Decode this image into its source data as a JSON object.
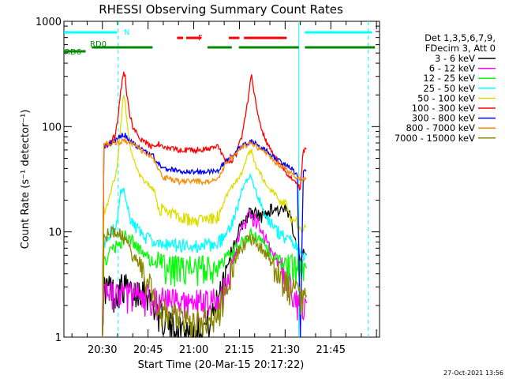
{
  "chart_data": {
    "type": "line",
    "title": "RHESSI Observing Summary Count Rates",
    "xlabel": "Start Time (20-Mar-15 20:17:22)",
    "ylabel": "Count Rate (s⁻¹ detector⁻¹)",
    "y_scale": "log",
    "ylim": [
      1,
      1000
    ],
    "xlim_minutes": [
      17.37,
      121.0
    ],
    "x_ticks": [
      {
        "label": "20:30",
        "minute": 30
      },
      {
        "label": "20:45",
        "minute": 45
      },
      {
        "label": "21:00",
        "minute": 60
      },
      {
        "label": "21:15",
        "minute": 75
      },
      {
        "label": "21:30",
        "minute": 90
      },
      {
        "label": "21:45",
        "minute": 105
      }
    ],
    "y_ticks": [
      {
        "label": "1",
        "value": 1
      },
      {
        "label": "10",
        "value": 10
      },
      {
        "label": "100",
        "value": 100
      },
      {
        "label": "1000",
        "value": 1000
      }
    ],
    "legend": {
      "placement": "right",
      "header": [
        "Det 1,3,5,6,7,9,",
        "FDecim 3, Att 0"
      ]
    },
    "series": [
      {
        "name": "3 - 6 keV",
        "color": "#000000",
        "x": [
          30,
          30.5,
          31,
          32,
          33,
          34,
          36,
          38,
          40,
          42,
          44,
          46,
          47,
          48,
          50,
          52,
          55,
          58,
          60,
          62,
          64,
          66,
          68,
          70,
          72,
          74,
          76,
          78,
          80,
          82,
          84,
          86,
          88,
          90,
          91,
          92,
          93,
          94,
          95,
          96,
          97
        ],
        "y": [
          1,
          3,
          3,
          3,
          3,
          2.5,
          3,
          3,
          2.5,
          3,
          3,
          2.2,
          2,
          1.8,
          1.5,
          1.3,
          1.2,
          1.2,
          1.2,
          1.2,
          1.3,
          1.5,
          2.5,
          4,
          6,
          9,
          12,
          15,
          15,
          14,
          15,
          17,
          16,
          16,
          15,
          13,
          10,
          7,
          6,
          6,
          6
        ]
      },
      {
        "name": "6 - 12 keV",
        "color": "#ff00ff",
        "x": [
          30,
          30.5,
          32,
          34,
          36,
          38,
          40,
          42,
          44,
          46,
          47,
          48,
          50,
          55,
          60,
          65,
          68,
          70,
          72,
          74,
          76,
          78,
          80,
          82,
          84,
          86,
          88,
          90,
          91,
          92,
          93,
          94,
          95,
          96,
          97
        ],
        "y": [
          1,
          2.5,
          2.5,
          2.5,
          2.5,
          2.5,
          2.5,
          2.5,
          2.4,
          2.4,
          2.3,
          2.2,
          2.2,
          2.1,
          2.1,
          2.1,
          2.2,
          3,
          5,
          7,
          11,
          14,
          13,
          11,
          8,
          6,
          5,
          4,
          3.5,
          3,
          2.5,
          2.2,
          2.1,
          2.1,
          2.1
        ]
      },
      {
        "name": "12 - 25 keV",
        "color": "#00ff00",
        "x": [
          30,
          30.5,
          32,
          34,
          36,
          37,
          38,
          39,
          40,
          42,
          44,
          46,
          47,
          48,
          50,
          55,
          60,
          65,
          68,
          70,
          72,
          74,
          76,
          78,
          79,
          80,
          82,
          84,
          86,
          88,
          90,
          91,
          92,
          93,
          94,
          95,
          96,
          97
        ],
        "y": [
          1,
          5,
          6,
          7,
          8,
          9,
          9,
          9,
          8,
          7,
          6,
          5.5,
          5,
          5,
          4.5,
          4.5,
          4.5,
          4.5,
          5,
          5.5,
          6,
          7,
          8,
          9,
          9.5,
          9,
          8,
          7,
          6,
          5.5,
          5,
          4.8,
          4.6,
          4.5,
          4.5,
          4.5,
          4.5,
          4.5
        ]
      },
      {
        "name": "25 - 50 keV",
        "color": "#00ffff",
        "x": [
          30,
          30.5,
          32,
          33,
          34,
          35,
          36,
          37,
          38,
          39,
          40,
          42,
          44,
          46,
          47,
          48,
          50,
          55,
          60,
          65,
          68,
          70,
          72,
          74,
          76,
          78,
          79,
          80,
          82,
          84,
          86,
          88,
          90,
          91,
          92,
          93,
          94,
          95,
          96,
          97
        ],
        "y": [
          1,
          8,
          9,
          10,
          11,
          14,
          24,
          26,
          18,
          14,
          12,
          10,
          9,
          8.5,
          8,
          8,
          7.5,
          7.5,
          7.5,
          7.5,
          8,
          9,
          11,
          16,
          26,
          33,
          34,
          26,
          18,
          14,
          11,
          10,
          9,
          8.5,
          8,
          8,
          7,
          6,
          6,
          6
        ]
      },
      {
        "name": "50 - 100 keV",
        "color": "#dddd00",
        "x": [
          30,
          30.5,
          32,
          33,
          34,
          35,
          36,
          37,
          37.5,
          38,
          39,
          40,
          42,
          44,
          46,
          47,
          48,
          50,
          55,
          60,
          65,
          68,
          70,
          72,
          74,
          76,
          78,
          79,
          80,
          82,
          84,
          86,
          88,
          90,
          91,
          92,
          93,
          94,
          95,
          96,
          97
        ],
        "y": [
          1,
          16,
          20,
          26,
          32,
          45,
          100,
          210,
          170,
          110,
          70,
          50,
          36,
          30,
          26,
          25,
          17,
          16,
          14,
          13,
          13,
          14,
          20,
          25,
          30,
          38,
          55,
          60,
          45,
          35,
          28,
          24,
          20,
          18,
          16,
          14,
          13,
          12,
          11,
          11,
          11
        ]
      },
      {
        "name": "100 - 300 keV",
        "color": "#ff0000",
        "x": [
          30,
          30.5,
          32,
          33,
          34,
          35,
          36,
          37,
          37.5,
          38,
          39,
          40,
          42,
          44,
          46,
          47,
          48,
          50,
          55,
          60,
          65,
          68,
          70,
          72,
          74,
          76,
          78,
          79,
          80,
          82,
          84,
          86,
          88,
          90,
          91,
          92,
          93,
          94,
          95,
          96,
          97
        ],
        "y": [
          1,
          65,
          70,
          75,
          80,
          110,
          220,
          330,
          300,
          200,
          130,
          100,
          80,
          70,
          65,
          62,
          70,
          64,
          60,
          60,
          62,
          65,
          50,
          45,
          55,
          85,
          200,
          320,
          190,
          100,
          70,
          55,
          45,
          38,
          35,
          33,
          30,
          28,
          26,
          60,
          62
        ]
      },
      {
        "name": "300 - 800 keV",
        "color": "#0000ff",
        "x": [
          30,
          30.5,
          32,
          34,
          36,
          37,
          38,
          40,
          42,
          44,
          46,
          47,
          48,
          50,
          55,
          60,
          65,
          68,
          70,
          72,
          74,
          76,
          78,
          79,
          80,
          82,
          84,
          86,
          88,
          90,
          91,
          92,
          93,
          94,
          95,
          96,
          97
        ],
        "y": [
          1,
          65,
          68,
          72,
          82,
          85,
          80,
          70,
          62,
          58,
          55,
          52,
          45,
          40,
          38,
          37,
          37,
          38,
          45,
          52,
          60,
          66,
          70,
          72,
          70,
          64,
          58,
          52,
          48,
          44,
          42,
          40,
          38,
          36,
          1,
          38,
          38
        ]
      },
      {
        "name": "800 - 7000 keV",
        "color": "#ff8800",
        "x": [
          30,
          30.5,
          32,
          34,
          36,
          37,
          38,
          40,
          42,
          44,
          46,
          47,
          48,
          50,
          55,
          60,
          65,
          68,
          70,
          72,
          74,
          76,
          78,
          79,
          80,
          82,
          84,
          86,
          88,
          90,
          91,
          92,
          93,
          94,
          95,
          96,
          97
        ],
        "y": [
          1,
          68,
          70,
          70,
          72,
          73,
          72,
          68,
          62,
          56,
          52,
          48,
          40,
          33,
          30,
          30,
          30,
          32,
          42,
          50,
          58,
          65,
          68,
          68,
          66,
          60,
          54,
          48,
          44,
          40,
          38,
          36,
          34,
          33,
          32,
          32,
          32
        ]
      },
      {
        "name": "7000 - 15000 keV",
        "color": "#888800",
        "x": [
          30,
          30.5,
          32,
          34,
          36,
          38,
          40,
          42,
          44,
          46,
          47,
          48,
          50,
          55,
          60,
          65,
          68,
          70,
          72,
          74,
          76,
          78,
          80,
          82,
          84,
          86,
          88,
          90,
          91,
          92,
          93,
          94,
          95,
          96,
          97
        ],
        "y": [
          1,
          9,
          9.5,
          10,
          9.5,
          8,
          6,
          5,
          4,
          3,
          2.5,
          2.2,
          1.8,
          1.5,
          1.3,
          1.5,
          1.8,
          2.5,
          4,
          6,
          7.5,
          8.5,
          8,
          7,
          6,
          5,
          4,
          3.5,
          3,
          2.8,
          2.7,
          2.6,
          2.5,
          2.5,
          2.5
        ]
      }
    ],
    "flags": [
      {
        "label": "N",
        "color": "#00ffff",
        "segments": [
          [
            17.37,
            34.8
          ],
          [
            96.5,
            118.5
          ]
        ]
      },
      {
        "label": "F",
        "color": "#ff0000",
        "segments": [
          [
            54.5,
            56.5
          ],
          [
            57.5,
            62.5
          ],
          [
            71.5,
            75
          ],
          [
            76.5,
            90.5
          ]
        ]
      },
      {
        "label": "RD0",
        "color": "#008800",
        "segments": [
          [
            26.5,
            46.5
          ],
          [
            64.5,
            72.5
          ],
          [
            74.8,
            94.5
          ],
          [
            96.5,
            119.5
          ]
        ]
      },
      {
        "label": "RD6",
        "color": "#008800",
        "segments": [
          [
            17.37,
            24.5
          ]
        ]
      }
    ],
    "vertical_markers": [
      {
        "minute": 35.2,
        "style": "dashed",
        "color": "#00ffff"
      },
      {
        "minute": 94.5,
        "style": "solid",
        "color": "#00ffff"
      },
      {
        "minute": 117.3,
        "style": "dashed",
        "color": "#00ffff"
      }
    ],
    "footer": "27-Oct-2021 13:56"
  }
}
